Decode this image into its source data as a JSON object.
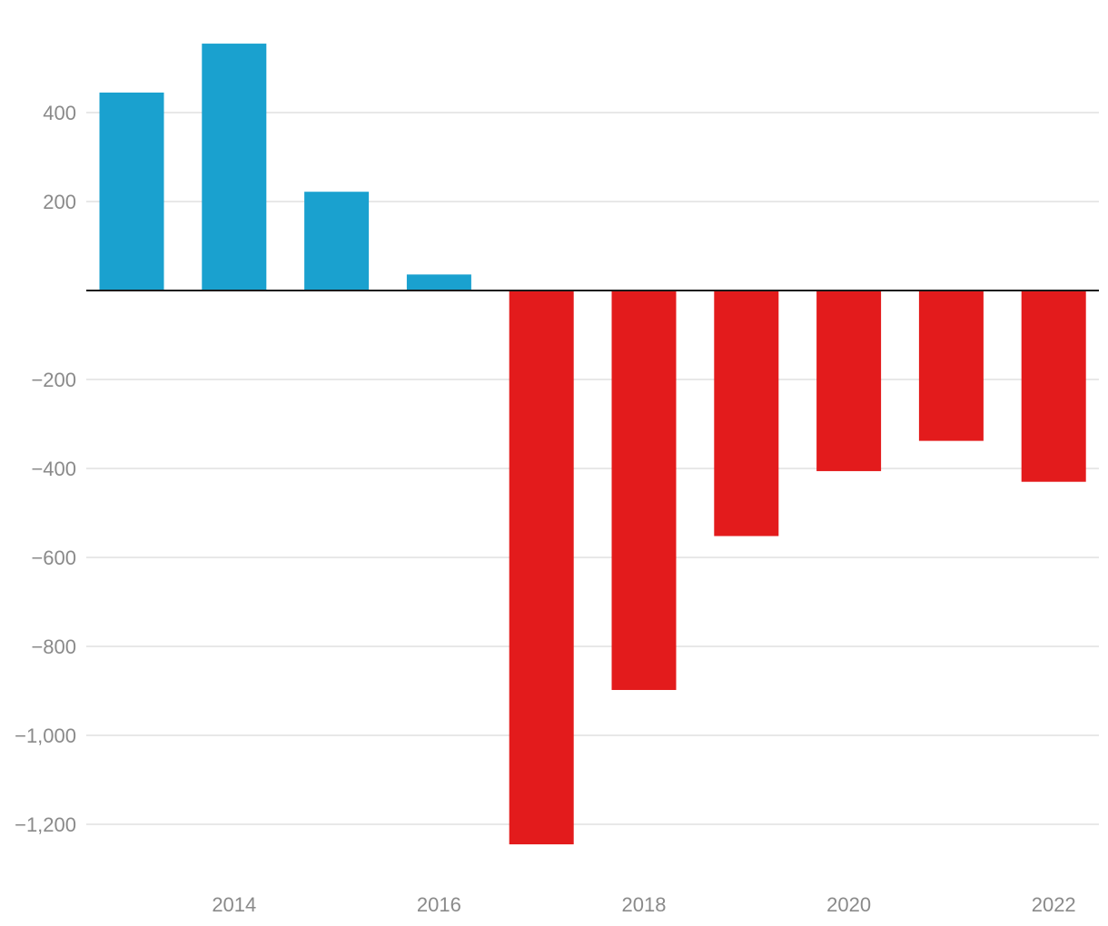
{
  "chart_data": {
    "type": "bar",
    "title": "",
    "xlabel": "",
    "ylabel": "",
    "categories": [
      "2013",
      "2014",
      "2015",
      "2016",
      "2017",
      "2018",
      "2019",
      "2020",
      "2021",
      "2022"
    ],
    "values": [
      445,
      555,
      222,
      36,
      -1245,
      -898,
      -552,
      -406,
      -338,
      -430
    ],
    "x_tick_labels": [
      "2014",
      "2016",
      "2018",
      "2020",
      "2022"
    ],
    "y_ticks": [
      400,
      200,
      0,
      -200,
      -400,
      -600,
      -800,
      -1000,
      -1200
    ],
    "y_tick_labels": [
      "400",
      "200",
      "",
      "−200",
      "−400",
      "−600",
      "−800",
      "−1,000",
      "−1,200"
    ],
    "ylim": [
      -1280,
      560
    ],
    "grid": true,
    "legend": "none",
    "colors": {
      "positive": "#1aa1cf",
      "negative": "#e31b1c",
      "grid": "#e0e0e0",
      "axis": "#1a1a1a",
      "tick_text": "#8a8a8a"
    }
  }
}
